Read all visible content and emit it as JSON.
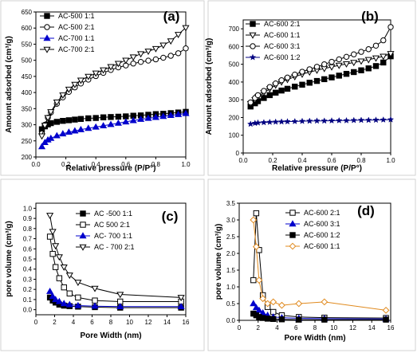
{
  "chart_data": [
    {
      "panel": "(a)",
      "type": "line",
      "xlabel": "Relative pressure (P/P°)",
      "ylabel": "Amount adsorbed (cm³/g)",
      "xlim": [
        0.0,
        1.0
      ],
      "ylim": [
        200,
        650
      ],
      "xticks": [
        "0.0",
        "0.2",
        "0.4",
        "0.6",
        "0.8",
        "1.0"
      ],
      "yticks": [
        "200",
        "250",
        "300",
        "350",
        "400",
        "450",
        "500",
        "550",
        "600",
        "650"
      ],
      "legend_position": "top-left",
      "series": [
        {
          "name": "AC-500 1:1",
          "color": "#000000",
          "marker": "square-filled",
          "x": [
            0.04,
            0.06,
            0.08,
            0.1,
            0.14,
            0.18,
            0.22,
            0.26,
            0.3,
            0.35,
            0.4,
            0.45,
            0.5,
            0.55,
            0.6,
            0.65,
            0.7,
            0.75,
            0.8,
            0.85,
            0.9,
            0.95,
            1.0
          ],
          "y": [
            286,
            295,
            301,
            305,
            309,
            312,
            314,
            316,
            318,
            320,
            321,
            323,
            324,
            325,
            326,
            328,
            329,
            331,
            333,
            334,
            336,
            338,
            340
          ]
        },
        {
          "name": "AC-500 2:1",
          "color": "#000000",
          "marker": "circle-open",
          "x": [
            0.04,
            0.06,
            0.08,
            0.1,
            0.14,
            0.18,
            0.22,
            0.26,
            0.3,
            0.35,
            0.4,
            0.45,
            0.5,
            0.55,
            0.6,
            0.65,
            0.7,
            0.75,
            0.8,
            0.85,
            0.9,
            0.95,
            1.0
          ],
          "y": [
            273,
            300,
            322,
            338,
            365,
            385,
            402,
            416,
            428,
            440,
            451,
            461,
            470,
            478,
            484,
            490,
            495,
            499,
            503,
            508,
            514,
            522,
            537
          ]
        },
        {
          "name": "AC-700 1:1",
          "color": "#0000cc",
          "marker": "triangle-filled",
          "x": [
            0.04,
            0.06,
            0.08,
            0.1,
            0.14,
            0.18,
            0.22,
            0.26,
            0.3,
            0.35,
            0.4,
            0.45,
            0.5,
            0.55,
            0.6,
            0.65,
            0.7,
            0.75,
            0.8,
            0.85,
            0.9,
            0.95,
            1.0
          ],
          "y": [
            232,
            245,
            253,
            258,
            266,
            272,
            277,
            281,
            285,
            289,
            293,
            297,
            301,
            305,
            309,
            313,
            317,
            320,
            323,
            326,
            329,
            332,
            335
          ]
        },
        {
          "name": "AC-700 2:1",
          "color": "#000000",
          "marker": "triangle-down-open",
          "x": [
            0.04,
            0.06,
            0.08,
            0.1,
            0.14,
            0.18,
            0.22,
            0.26,
            0.3,
            0.35,
            0.4,
            0.45,
            0.5,
            0.55,
            0.6,
            0.65,
            0.7,
            0.75,
            0.8,
            0.85,
            0.9,
            0.95,
            1.0
          ],
          "y": [
            265,
            298,
            322,
            340,
            370,
            392,
            410,
            425,
            438,
            450,
            460,
            470,
            480,
            490,
            500,
            510,
            520,
            528,
            536,
            547,
            560,
            580,
            601
          ]
        }
      ]
    },
    {
      "panel": "(b)",
      "type": "line",
      "xlabel": "Relative pressure (P/P°)",
      "ylabel": "Amount adsorbed (cm³/g)",
      "xlim": [
        0.0,
        1.0
      ],
      "ylim": [
        0,
        750
      ],
      "xticks": [
        "0.0",
        "0.2",
        "0.4",
        "0.6",
        "0.8",
        "1.0"
      ],
      "yticks": [
        "0",
        "100",
        "200",
        "300",
        "400",
        "500",
        "600",
        "700"
      ],
      "legend_position": "top-left",
      "series": [
        {
          "name": "AC-600 2:1",
          "color": "#000000",
          "marker": "square-filled",
          "x": [
            0.05,
            0.08,
            0.1,
            0.14,
            0.18,
            0.22,
            0.26,
            0.3,
            0.35,
            0.4,
            0.45,
            0.5,
            0.55,
            0.6,
            0.65,
            0.7,
            0.75,
            0.8,
            0.85,
            0.9,
            0.95,
            1.0
          ],
          "y": [
            262,
            280,
            292,
            310,
            326,
            340,
            352,
            362,
            374,
            385,
            396,
            406,
            416,
            426,
            436,
            446,
            456,
            466,
            477,
            490,
            510,
            545
          ]
        },
        {
          "name": "AC-600 1:1",
          "color": "#000000",
          "marker": "triangle-down-open",
          "x": [
            0.05,
            0.08,
            0.1,
            0.14,
            0.18,
            0.22,
            0.26,
            0.3,
            0.35,
            0.4,
            0.45,
            0.5,
            0.55,
            0.6,
            0.65,
            0.7,
            0.75,
            0.8,
            0.85,
            0.9,
            0.95,
            1.0
          ],
          "y": [
            278,
            300,
            316,
            340,
            362,
            382,
            400,
            414,
            430,
            444,
            456,
            466,
            476,
            485,
            494,
            502,
            510,
            518,
            526,
            535,
            545,
            560
          ]
        },
        {
          "name": "AC-600 3:1",
          "color": "#000000",
          "marker": "circle-open",
          "x": [
            0.05,
            0.08,
            0.1,
            0.14,
            0.18,
            0.22,
            0.26,
            0.3,
            0.35,
            0.4,
            0.45,
            0.5,
            0.55,
            0.6,
            0.65,
            0.7,
            0.75,
            0.8,
            0.85,
            0.9,
            0.95,
            1.0
          ],
          "y": [
            285,
            310,
            326,
            350,
            372,
            392,
            410,
            425,
            442,
            458,
            472,
            486,
            500,
            514,
            528,
            542,
            556,
            570,
            585,
            605,
            635,
            710
          ]
        },
        {
          "name": "AC-600 1:2",
          "color": "#000080",
          "marker": "star-filled",
          "x": [
            0.05,
            0.08,
            0.1,
            0.14,
            0.18,
            0.22,
            0.26,
            0.3,
            0.35,
            0.4,
            0.45,
            0.5,
            0.55,
            0.6,
            0.65,
            0.7,
            0.75,
            0.8,
            0.85,
            0.9,
            0.95,
            1.0
          ],
          "y": [
            163,
            168,
            170,
            172,
            174,
            175,
            176,
            177,
            178,
            179,
            180,
            181,
            181,
            182,
            183,
            183,
            184,
            185,
            185,
            186,
            187,
            188
          ]
        }
      ]
    },
    {
      "panel": "(c)",
      "type": "line",
      "xlabel": "Pore Width (nm)",
      "ylabel": "pore volume (cm³/g)",
      "xlim": [
        0,
        16
      ],
      "ylim": [
        -0.05,
        1.05
      ],
      "xticks": [
        "0",
        "2",
        "4",
        "6",
        "8",
        "10",
        "12",
        "14",
        "16"
      ],
      "yticks": [
        "0.0",
        "0.1",
        "0.2",
        "0.3",
        "0.4",
        "0.5",
        "0.6",
        "0.7",
        "0.8",
        "0.9",
        "1.0"
      ],
      "legend_position": "top-right",
      "series": [
        {
          "name": "AC -500 1:1",
          "color": "#000000",
          "marker": "square-filled",
          "x": [
            1.5,
            1.8,
            2.1,
            2.5,
            3.0,
            3.6,
            4.5,
            6.3,
            9.0,
            15.5
          ],
          "y": [
            0.12,
            0.09,
            0.07,
            0.05,
            0.04,
            0.035,
            0.03,
            0.025,
            0.02,
            0.02
          ]
        },
        {
          "name": "AC 500 2:1",
          "color": "#000000",
          "marker": "square-open",
          "x": [
            1.5,
            1.8,
            2.1,
            2.5,
            3.0,
            3.6,
            4.5,
            6.3,
            9.0,
            15.5
          ],
          "y": [
            0.72,
            0.55,
            0.42,
            0.31,
            0.22,
            0.16,
            0.12,
            0.09,
            0.08,
            0.08
          ]
        },
        {
          "name": "AC- 700 1:1",
          "color": "#0000cc",
          "marker": "triangle-filled",
          "x": [
            1.5,
            1.8,
            2.1,
            2.5,
            3.0,
            3.6,
            4.5,
            6.3,
            9.0,
            15.5
          ],
          "y": [
            0.18,
            0.13,
            0.1,
            0.08,
            0.06,
            0.05,
            0.04,
            0.035,
            0.03,
            0.03
          ]
        },
        {
          "name": "AC - 700 2:1",
          "color": "#000000",
          "marker": "triangle-down-open",
          "x": [
            1.5,
            1.8,
            2.1,
            2.5,
            3.0,
            3.6,
            4.5,
            6.3,
            9.0,
            15.5
          ],
          "y": [
            0.93,
            0.77,
            0.63,
            0.52,
            0.42,
            0.34,
            0.27,
            0.21,
            0.15,
            0.12
          ]
        }
      ]
    },
    {
      "panel": "(d)",
      "type": "line",
      "xlabel": "Pore Width (nm)",
      "ylabel": "pore volume (cm³/g)",
      "xlim": [
        0,
        16
      ],
      "ylim": [
        0,
        3.5
      ],
      "xticks": [
        "0",
        "2",
        "4",
        "6",
        "8",
        "10",
        "12",
        "14",
        "16"
      ],
      "yticks": [
        "0.0",
        "0.5",
        "1.0",
        "1.5",
        "2.0",
        "2.5",
        "3.0",
        "3.5"
      ],
      "legend_position": "top-right",
      "series": [
        {
          "name": "AC-600 2:1",
          "color": "#000000",
          "marker": "square-open",
          "x": [
            1.5,
            1.8,
            2.1,
            2.5,
            3.0,
            3.6,
            4.5,
            6.3,
            9.0,
            15.5
          ],
          "y": [
            1.2,
            3.2,
            2.1,
            0.75,
            0.4,
            0.25,
            0.15,
            0.1,
            0.08,
            0.07
          ]
        },
        {
          "name": "AC-600 3:1",
          "color": "#0000cc",
          "marker": "triangle-filled",
          "x": [
            1.5,
            1.8,
            2.1,
            2.5,
            3.0,
            3.6,
            4.5,
            6.3,
            9.0,
            15.5
          ],
          "y": [
            0.5,
            0.38,
            0.3,
            0.22,
            0.15,
            0.1,
            0.08,
            0.06,
            0.05,
            0.04
          ]
        },
        {
          "name": "AC-600 1:2",
          "color": "#000000",
          "marker": "square-filled",
          "x": [
            1.5,
            1.8,
            2.1,
            2.5,
            3.0,
            3.6,
            4.5,
            6.3,
            9.0,
            15.5
          ],
          "y": [
            0.2,
            0.15,
            0.1,
            0.07,
            0.05,
            0.04,
            0.03,
            0.02,
            0.02,
            0.02
          ]
        },
        {
          "name": "AC-600  1:1",
          "color": "#e08a1e",
          "marker": "diamond-open",
          "x": [
            1.5,
            1.8,
            2.1,
            2.5,
            3.0,
            3.6,
            4.5,
            6.3,
            9.0,
            15.5
          ],
          "y": [
            3.0,
            2.2,
            1.2,
            0.65,
            0.5,
            0.55,
            0.45,
            0.5,
            0.55,
            0.3
          ]
        }
      ]
    }
  ]
}
